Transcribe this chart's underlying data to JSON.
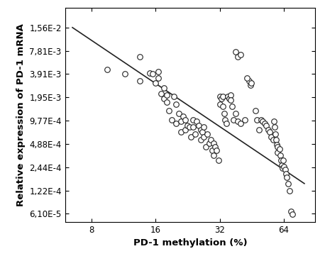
{
  "xlabel": "PD-1 methylation (%)",
  "ylabel": "Relative expression of PD-1 mRNA",
  "x_ticks": [
    8,
    16,
    32,
    64
  ],
  "y_ticks": [
    6.1e-05,
    0.000122,
    0.000244,
    0.000488,
    0.000977,
    0.00195,
    0.00391,
    0.00781,
    0.0156
  ],
  "y_tick_labels": [
    "6,10E-5",
    "1,22E-4",
    "2,44E-4",
    "4,88E-4",
    "9,77E-4",
    "1,95E-3",
    "3,91E-3",
    "7,81E-3",
    "1,56E-2"
  ],
  "xlim": [
    6.0,
    90
  ],
  "ylim": [
    4.8e-05,
    0.028
  ],
  "scatter_color": "white",
  "scatter_edgecolor": "#222222",
  "line_color": "#222222",
  "line_x1": 6.5,
  "line_y1": 0.0156,
  "line_x2": 80,
  "line_y2": 0.00015,
  "scatter_x": [
    9.5,
    11.5,
    13.5,
    13.5,
    15.0,
    15.5,
    16.0,
    16.5,
    16.5,
    17.0,
    17.5,
    17.5,
    18.0,
    18.0,
    18.5,
    19.0,
    19.5,
    20.0,
    20.0,
    20.5,
    21.0,
    21.0,
    21.5,
    22.0,
    22.0,
    22.5,
    23.0,
    23.5,
    24.0,
    24.0,
    24.5,
    25.0,
    25.5,
    26.0,
    26.0,
    26.5,
    27.0,
    27.0,
    27.5,
    28.0,
    28.5,
    29.0,
    29.5,
    30.0,
    30.0,
    30.5,
    31.0,
    31.5,
    32.0,
    32.0,
    32.5,
    33.0,
    33.0,
    33.5,
    34.0,
    34.5,
    35.0,
    35.5,
    36.0,
    36.0,
    36.5,
    37.0,
    38.0,
    39.0,
    40.0,
    42.0,
    44.0,
    44.5,
    38.0,
    39.0,
    40.0,
    43.0,
    45.0,
    47.0,
    48.0,
    49.0,
    50.0,
    51.0,
    52.0,
    53.0,
    54.0,
    55.0,
    56.0,
    57.0,
    57.5,
    58.0,
    58.5,
    59.0,
    59.5,
    60.0,
    60.0,
    61.0,
    61.5,
    62.0,
    62.5,
    63.0,
    63.5,
    64.0,
    65.0,
    65.5,
    66.0,
    67.0,
    68.0,
    69.0,
    70.0
  ],
  "scatter_y": [
    0.0045,
    0.0039,
    0.0032,
    0.0065,
    0.004,
    0.0039,
    0.003,
    0.0042,
    0.0035,
    0.0022,
    0.0026,
    0.0019,
    0.0021,
    0.0017,
    0.0013,
    0.001,
    0.002,
    0.0016,
    0.0009,
    0.0012,
    0.00095,
    0.0007,
    0.0011,
    0.001,
    0.00075,
    0.00085,
    0.0008,
    0.0006,
    0.001,
    0.0008,
    0.00065,
    0.00095,
    0.00085,
    0.00075,
    0.00055,
    0.0007,
    0.0008,
    0.0006,
    0.00045,
    0.00065,
    0.0005,
    0.00055,
    0.0004,
    0.0005,
    0.00035,
    0.00045,
    0.0004,
    0.0003,
    0.002,
    0.0016,
    0.0019,
    0.002,
    0.0015,
    0.0012,
    0.001,
    0.0009,
    0.002,
    0.0019,
    0.0021,
    0.0018,
    0.0015,
    0.001,
    0.0012,
    0.00095,
    0.0009,
    0.001,
    0.0032,
    0.0028,
    0.0075,
    0.0065,
    0.007,
    0.0035,
    0.003,
    0.0013,
    0.001,
    0.00075,
    0.001,
    0.00095,
    0.0009,
    0.00085,
    0.00075,
    0.0007,
    0.0006,
    0.00055,
    0.00095,
    0.0008,
    0.00065,
    0.00055,
    0.00048,
    0.00045,
    0.00038,
    0.00042,
    0.00035,
    0.0003,
    0.00026,
    0.00024,
    0.0003,
    0.00025,
    0.00023,
    0.0002,
    0.00018,
    0.00015,
    0.00012,
    6.5e-05,
    6e-05
  ]
}
